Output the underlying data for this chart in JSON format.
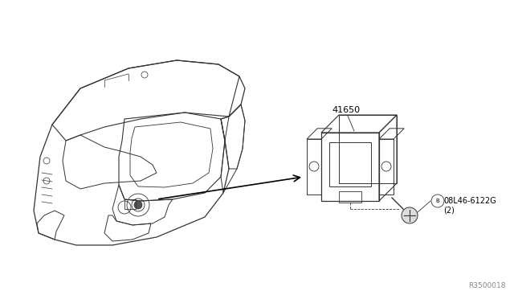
{
  "background_color": "#ffffff",
  "figsize": [
    6.4,
    3.72
  ],
  "dpi": 100,
  "line_color": "#333333",
  "ref_code": "R3500018",
  "part_label_1": "41650",
  "part_label_2": "08L46-6122G",
  "part_label_2b": "(2)"
}
